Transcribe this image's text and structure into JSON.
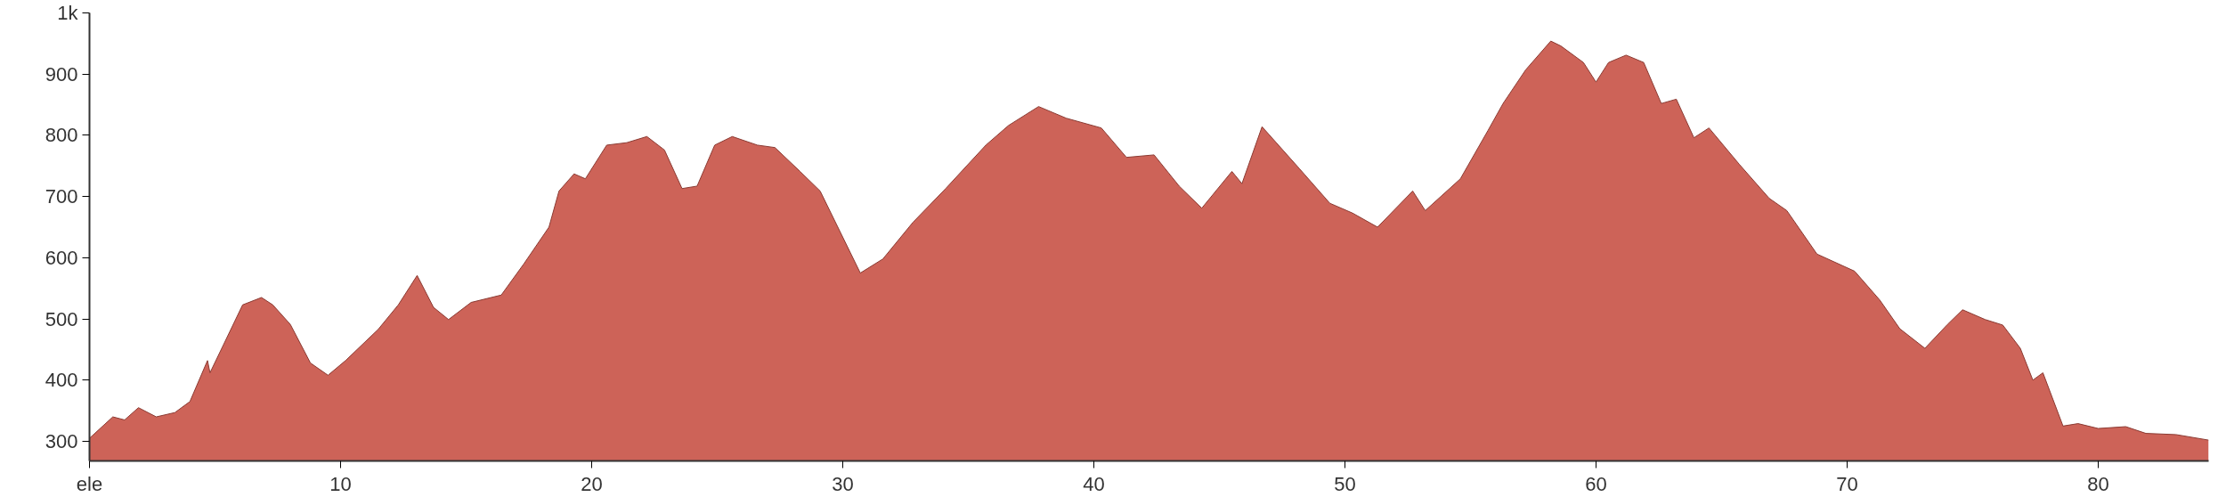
{
  "chart_data": {
    "type": "area",
    "ylabel": "ele",
    "x": [
      0,
      0.93,
      1.4,
      1.95,
      2.66,
      3.4,
      4.0,
      4.7,
      4.8,
      6.1,
      6.85,
      7.3,
      8.0,
      8.8,
      9.5,
      10.2,
      11.5,
      12.3,
      13.05,
      13.7,
      14.3,
      15.2,
      16.4,
      17.3,
      18.3,
      18.7,
      19.3,
      19.75,
      20.6,
      21.4,
      22.2,
      22.9,
      23.6,
      24.2,
      24.9,
      25.6,
      26.6,
      27.3,
      28.3,
      29.1,
      30.7,
      31.6,
      32.8,
      34.1,
      35.7,
      36.6,
      37.8,
      38.9,
      40.3,
      41.3,
      42.4,
      43.4,
      44.3,
      45.5,
      45.9,
      46.7,
      48.2,
      49.4,
      50.3,
      51.3,
      52.7,
      53.2,
      54.6,
      55.7,
      56.3,
      57.2,
      58.2,
      58.6,
      59.5,
      60.0,
      60.5,
      61.2,
      61.9,
      62.6,
      63.2,
      63.9,
      64.5,
      65.7,
      66.9,
      67.6,
      68.8,
      70.3,
      71.3,
      72.1,
      73.1,
      74.0,
      74.6,
      75.5,
      76.2,
      76.9,
      77.4,
      77.8,
      78.6,
      79.2,
      80.0,
      81.1,
      81.9,
      83.1,
      84.4
    ],
    "series": [
      {
        "color": "#cd6358",
        "values": [
          305,
          340,
          335,
          355,
          340,
          347,
          365,
          432,
          412,
          523,
          535,
          523,
          491,
          428,
          408,
          432,
          483,
          523,
          571,
          519,
          499,
          527,
          539,
          590,
          650,
          709,
          737,
          729,
          784,
          788,
          798,
          776,
          713,
          717,
          784,
          798,
          784,
          780,
          741,
          709,
          575,
          598,
          658,
          713,
          784,
          816,
          847,
          828,
          812,
          764,
          768,
          717,
          681,
          741,
          721,
          814,
          745,
          689,
          673,
          650,
          709,
          677,
          729,
          808,
          852,
          907,
          954,
          946,
          919,
          887,
          919,
          931,
          919,
          852,
          859,
          796,
          812,
          753,
          697,
          677,
          606,
          578,
          531,
          484,
          452,
          491,
          515,
          499,
          490,
          452,
          400,
          412,
          325,
          329,
          321,
          324,
          313,
          311,
          302
        ]
      }
    ],
    "xlim": [
      0,
      84.4
    ],
    "ylim": [
      268,
      1000
    ],
    "xticks": [
      10,
      20,
      30,
      40,
      50,
      60,
      70,
      80
    ],
    "yticks": [
      300,
      400,
      500,
      600,
      700,
      800,
      900,
      {
        "value": 1000,
        "label": "1k"
      }
    ],
    "grid": false
  }
}
